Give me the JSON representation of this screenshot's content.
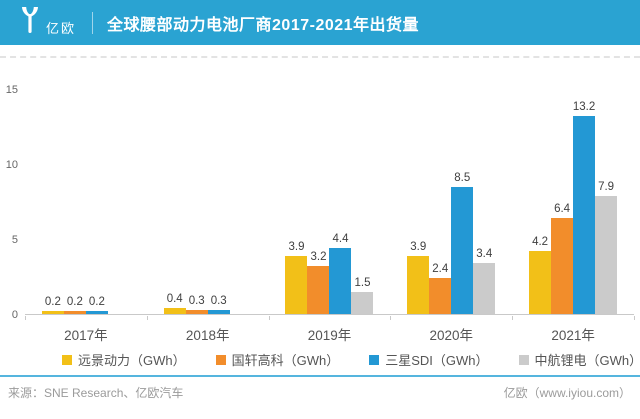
{
  "header": {
    "logo_text": "亿欧",
    "title": "全球腰部动力电池厂商2017-2021年出货量"
  },
  "chart_data": {
    "type": "bar",
    "title": "全球腰部动力电池厂商2017-2021年出货量",
    "categories": [
      "2017年",
      "2018年",
      "2019年",
      "2020年",
      "2021年"
    ],
    "series": [
      {
        "name": "远景动力（GWh）",
        "color": "#F2C018",
        "values": [
          0.2,
          0.4,
          3.9,
          3.9,
          4.2
        ]
      },
      {
        "name": "国轩高科（GWh）",
        "color": "#F28D2B",
        "values": [
          0.2,
          0.3,
          3.2,
          2.4,
          6.4
        ]
      },
      {
        "name": "三星SDI（GWh）",
        "color": "#2398D4",
        "values": [
          0.2,
          0.3,
          4.4,
          8.5,
          13.2
        ]
      },
      {
        "name": "中航锂电（GWh）",
        "color": "#CBCBCB",
        "values": [
          null,
          null,
          1.5,
          3.4,
          7.9
        ]
      }
    ],
    "xlabel": "",
    "ylabel": "",
    "ylim": [
      0,
      15
    ],
    "yticks": [
      0,
      5,
      10,
      15
    ],
    "grid": false,
    "legend_position": "bottom",
    "value_labels_shown": true
  },
  "footer": {
    "source": "来源：SNE Research、亿欧汽车",
    "site": "亿欧（www.iyiou.com）"
  },
  "colors": {
    "header_bg": "#2AA3D2",
    "divider_blue": "#55B5DE",
    "axis": "#C9C9C9"
  }
}
